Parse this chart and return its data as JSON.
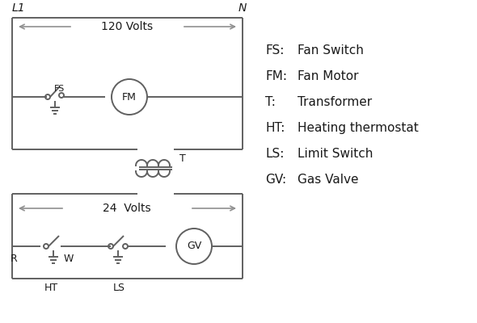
{
  "bg_color": "#ffffff",
  "line_color": "#606060",
  "text_color": "#1a1a1a",
  "arrow_color": "#909090",
  "entries": [
    [
      "FS:",
      "Fan Switch"
    ],
    [
      "FM:",
      "Fan Motor"
    ],
    [
      "T:",
      "Transformer"
    ],
    [
      "HT:",
      "Heating thermostat"
    ],
    [
      "LS:",
      "Limit Switch"
    ],
    [
      "GV:",
      "Gas Valve"
    ]
  ]
}
